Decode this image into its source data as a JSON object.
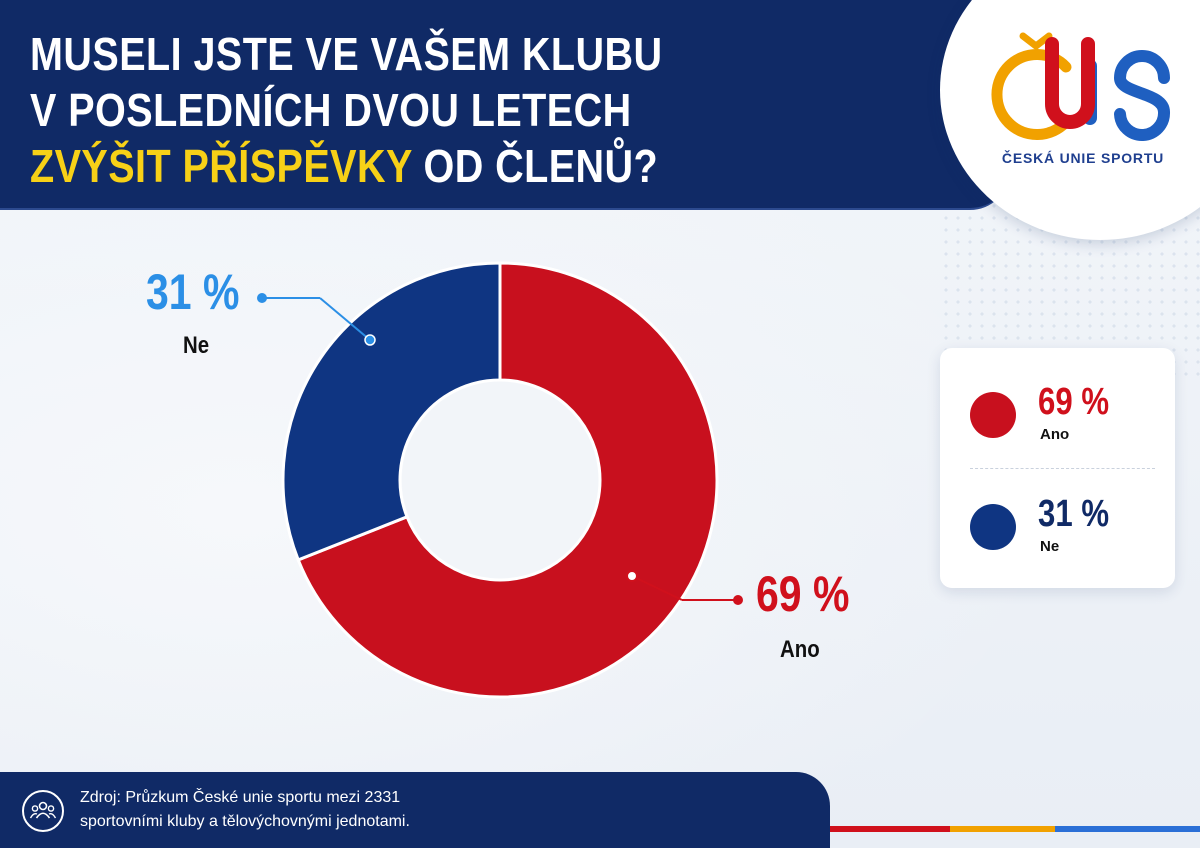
{
  "header": {
    "title_line1": "MUSELI JSTE VE VAŠEM KLUBU",
    "title_line2": "V POSLEDNÍCH DVOU LETECH",
    "title_line3_highlight": "ZVÝŠIT PŘÍSPĚVKY",
    "title_line3_rest": " OD ČLENŮ?"
  },
  "logo": {
    "text": "ČESKÁ UNIE SPORTU",
    "icon": "cus-logo-icon"
  },
  "chart_data": {
    "type": "pie",
    "donut": true,
    "title": "MUSELI JSTE VE VAŠEM KLUBU V POSLEDNÍCH DVOU LETECH ZVÝŠIT PŘÍSPĚVKY OD ČLENŮ?",
    "categories": [
      "Ano",
      "Ne"
    ],
    "values": [
      69,
      31
    ],
    "value_labels": [
      "69 %",
      "31 %"
    ],
    "colors": [
      "#c8101e",
      "#0f3582"
    ],
    "label_colors": [
      "#d0101c",
      "#2b8fe6"
    ],
    "legend_placement": "right"
  },
  "legend": {
    "items": [
      {
        "pct": "69 %",
        "label": "Ano",
        "color": "#c8101e",
        "pct_color": "#d0101c"
      },
      {
        "pct": "31 %",
        "label": "Ne",
        "color": "#0f3582",
        "pct_color": "#102a66"
      }
    ]
  },
  "footer": {
    "icon": "people-group-icon",
    "line1": "Zdroj: Průzkum České unie sportu mezi 2331",
    "line2": "sportovními kluby a tělovýchovnými jednotami."
  },
  "stripe_colors": [
    "#d0101c",
    "#f1a100",
    "#2b6fd6"
  ]
}
